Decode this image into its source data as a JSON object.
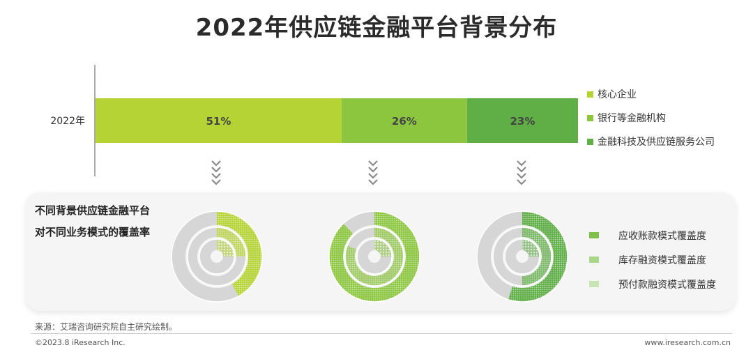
{
  "title": "2022年供应链金融平台背景分布",
  "chart_data": [
    {
      "type": "bar",
      "orientation": "horizontal-stacked",
      "categories": [
        "2022年"
      ],
      "series": [
        {
          "name": "核心企业",
          "values": [
            51
          ],
          "label": "51%",
          "color": "#b5d334"
        },
        {
          "name": "银行等金融机构",
          "values": [
            26
          ],
          "label": "26%",
          "color": "#8cc63f"
        },
        {
          "name": "金融科技及供应链服务公司",
          "values": [
            23
          ],
          "label": "23%",
          "color": "#5fae46"
        }
      ],
      "xlim": [
        0,
        100
      ],
      "legend": "right"
    },
    {
      "type": "pie",
      "style": "concentric-rings",
      "title_lines": [
        "不同背景供应链金融平台",
        "对不同业务模式的覆盖率"
      ],
      "ring_series": [
        "应收账款模式覆盖度",
        "库存融资模式覆盖度",
        "预付款融资模式覆盖度"
      ],
      "groups": [
        {
          "name": "核心企业",
          "color": "#b5d334",
          "values": [
            0.42,
            0.25,
            0.25
          ]
        },
        {
          "name": "银行等金融机构",
          "color": "#8cc63f",
          "values": [
            0.88,
            0.81,
            0.25
          ]
        },
        {
          "name": "金融科技及供应链服务公司",
          "color": "#5fae46",
          "values": [
            0.55,
            0.5,
            0.25
          ]
        }
      ],
      "legend": "right"
    }
  ],
  "bar_label_text": [
    "51%",
    "26%",
    "23%"
  ],
  "panel_title": [
    "不同背景供应链金融平台",
    "对不同业务模式的覆盖率"
  ],
  "ring_legend": [
    "应收账款模式覆盖度",
    "库存融资模式覆盖度",
    "预付款融资模式覆盖度"
  ],
  "source": "来源：艾瑞咨询研究院自主研究绘制。",
  "copyright": "©2023.8 iResearch Inc.",
  "site": "www.iresearch.com.cn",
  "colors": {
    "axis": "#555555",
    "panel_bg": "#f4f4f4",
    "ring_bg": "#d6d6d6",
    "chevron": "#8a8a8a"
  }
}
